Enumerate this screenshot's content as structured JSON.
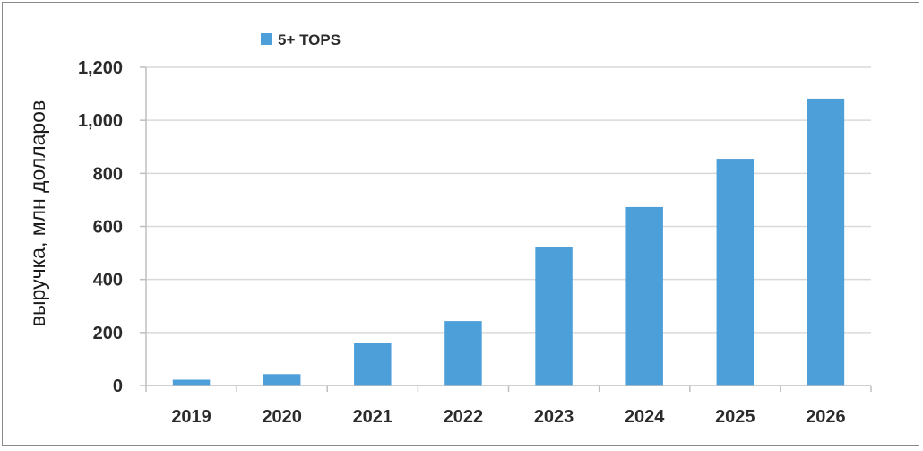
{
  "chart_data": {
    "type": "bar",
    "categories": [
      "2019",
      "2020",
      "2021",
      "2022",
      "2023",
      "2024",
      "2025",
      "2026"
    ],
    "series": [
      {
        "name": "5+ TOPS",
        "values": [
          22,
          43,
          160,
          243,
          522,
          673,
          855,
          1082
        ]
      }
    ],
    "ylabel": "выручка, млн долларов",
    "xlabel": "",
    "ylim": [
      0,
      1200
    ],
    "yticks": [
      0,
      200,
      400,
      600,
      800,
      1000,
      1200
    ],
    "ytick_labels": [
      "0",
      "200",
      "400",
      "600",
      "800",
      "1,000",
      "1,200"
    ],
    "grid": true,
    "legend_position": "top-left",
    "colors": {
      "bar": "#4d9fd9",
      "grid": "#d9d9d9",
      "axis": "#bfbfbf"
    }
  }
}
